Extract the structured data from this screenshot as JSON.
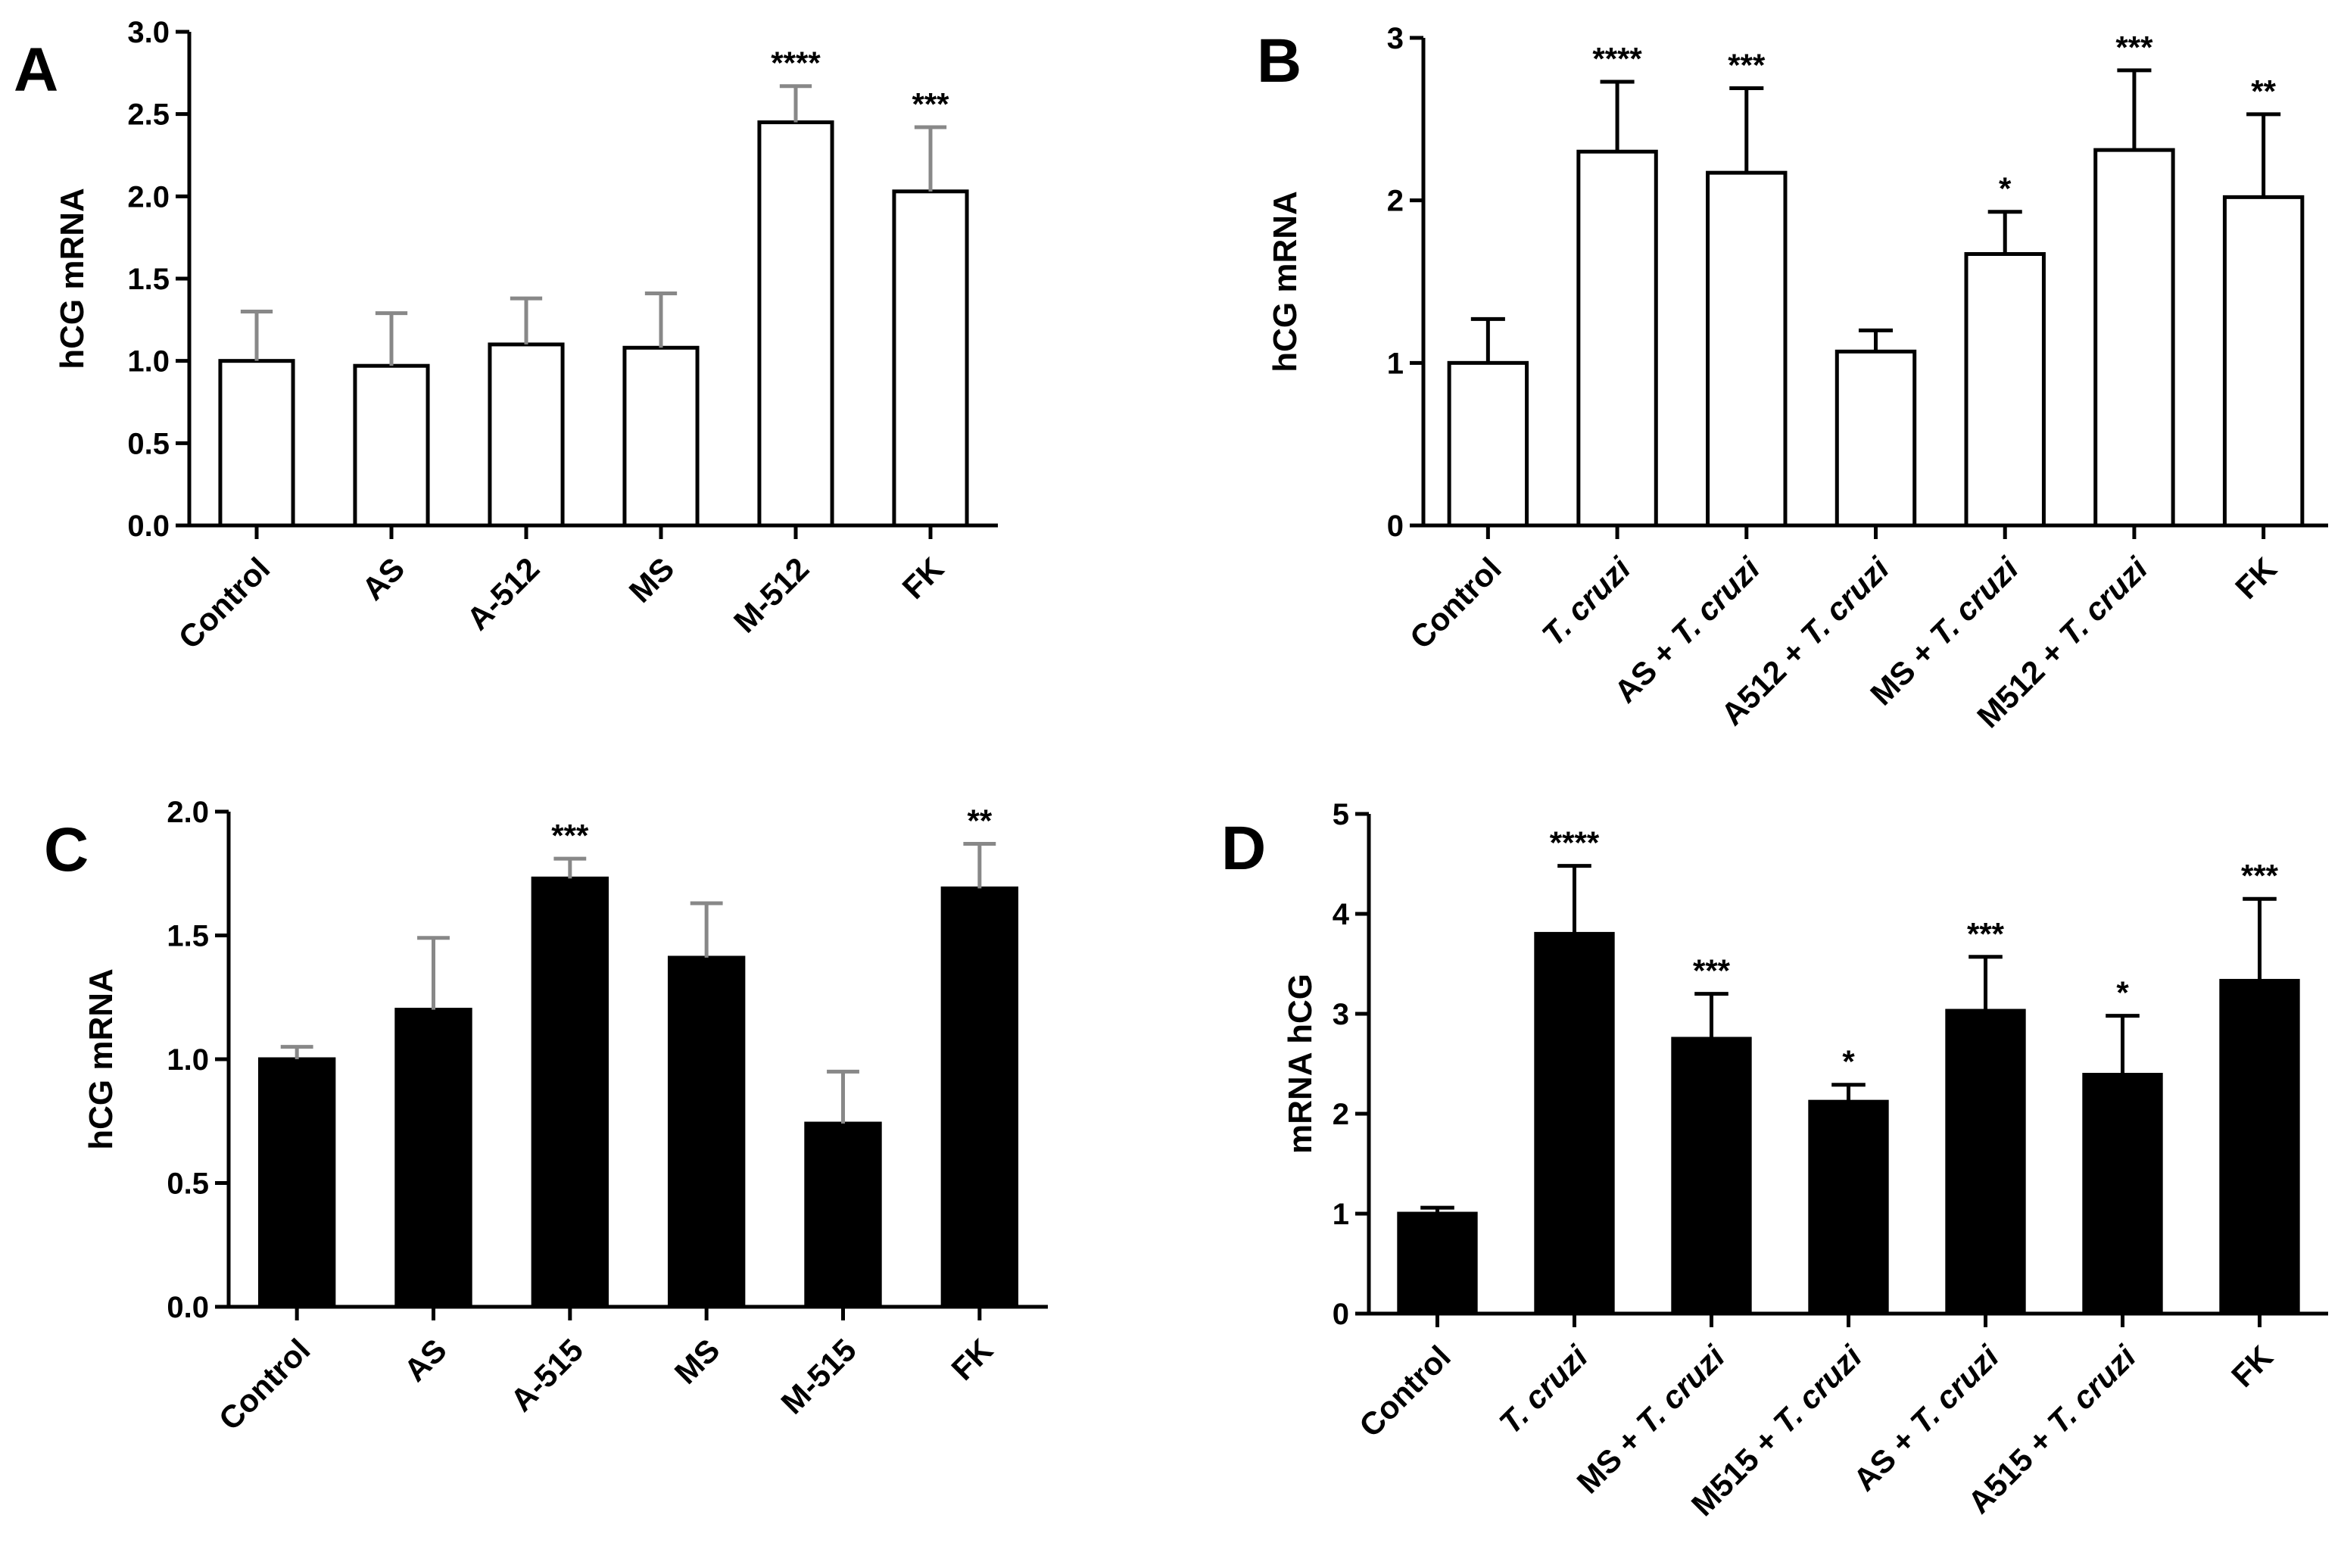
{
  "chart_data": [
    {
      "panel": "A",
      "type": "bar",
      "bar_fill": "#ffffff",
      "error_color": "#888888",
      "ylabel": "hCG mRNA",
      "ylim": [
        0,
        3.0
      ],
      "yticks": [
        "0.0",
        "0.5",
        "1.0",
        "1.5",
        "2.0",
        "2.5",
        "3.0"
      ],
      "categories": [
        {
          "parts": [
            {
              "text": "Control",
              "italic": false
            }
          ]
        },
        {
          "parts": [
            {
              "text": "AS",
              "italic": false
            }
          ]
        },
        {
          "parts": [
            {
              "text": "A-512",
              "italic": false
            }
          ]
        },
        {
          "parts": [
            {
              "text": "MS",
              "italic": false
            }
          ]
        },
        {
          "parts": [
            {
              "text": "M-512",
              "italic": false
            }
          ]
        },
        {
          "parts": [
            {
              "text": "FK",
              "italic": false
            }
          ]
        }
      ],
      "values": [
        1.0,
        0.97,
        1.1,
        1.08,
        2.45,
        2.03
      ],
      "errors": [
        0.3,
        0.32,
        0.28,
        0.33,
        0.22,
        0.39
      ],
      "significance": [
        "",
        "",
        "",
        "",
        "****",
        "***"
      ]
    },
    {
      "panel": "B",
      "type": "bar",
      "bar_fill": "#ffffff",
      "error_color": "#000000",
      "ylabel": "hCG mRNA",
      "ylim": [
        0,
        3
      ],
      "yticks": [
        "0",
        "1",
        "2",
        "3"
      ],
      "categories": [
        {
          "parts": [
            {
              "text": "Control",
              "italic": false
            }
          ]
        },
        {
          "parts": [
            {
              "text": "T. cruzi",
              "italic": true
            }
          ]
        },
        {
          "parts": [
            {
              "text": "AS + ",
              "italic": false
            },
            {
              "text": "T. cruzi",
              "italic": true
            }
          ]
        },
        {
          "parts": [
            {
              "text": "A512 + ",
              "italic": false
            },
            {
              "text": "T. cruzi",
              "italic": true
            }
          ]
        },
        {
          "parts": [
            {
              "text": "MS + ",
              "italic": false
            },
            {
              "text": "T. cruzi",
              "italic": true
            }
          ]
        },
        {
          "parts": [
            {
              "text": "M512 + ",
              "italic": false
            },
            {
              "text": "T. cruzi",
              "italic": true
            }
          ]
        },
        {
          "parts": [
            {
              "text": "FK",
              "italic": false
            }
          ]
        }
      ],
      "values": [
        1.0,
        2.3,
        2.17,
        1.07,
        1.67,
        2.31,
        2.02
      ],
      "errors": [
        0.27,
        0.43,
        0.52,
        0.13,
        0.26,
        0.49,
        0.51
      ],
      "significance": [
        "",
        "****",
        "***",
        "",
        "*",
        "***",
        "**"
      ]
    },
    {
      "panel": "C",
      "type": "bar",
      "bar_fill": "#000000",
      "error_color": "#888888",
      "ylabel": "hCG mRNA",
      "ylim": [
        0,
        2.0
      ],
      "yticks": [
        "0.0",
        "0.5",
        "1.0",
        "1.5",
        "2.0"
      ],
      "categories": [
        {
          "parts": [
            {
              "text": "Control",
              "italic": false
            }
          ]
        },
        {
          "parts": [
            {
              "text": "AS",
              "italic": false
            }
          ]
        },
        {
          "parts": [
            {
              "text": "A-515",
              "italic": false
            }
          ]
        },
        {
          "parts": [
            {
              "text": "MS",
              "italic": false
            }
          ]
        },
        {
          "parts": [
            {
              "text": "M-515",
              "italic": false
            }
          ]
        },
        {
          "parts": [
            {
              "text": "FK",
              "italic": false
            }
          ]
        }
      ],
      "values": [
        1.0,
        1.2,
        1.73,
        1.41,
        0.74,
        1.69
      ],
      "errors": [
        0.05,
        0.29,
        0.08,
        0.22,
        0.21,
        0.18
      ],
      "significance": [
        "",
        "",
        "***",
        "",
        "",
        "**"
      ]
    },
    {
      "panel": "D",
      "type": "bar",
      "bar_fill": "#000000",
      "error_color": "#000000",
      "ylabel": "mRNA hCG",
      "ylim": [
        0,
        5
      ],
      "yticks": [
        "0",
        "1",
        "2",
        "3",
        "4",
        "5"
      ],
      "categories": [
        {
          "parts": [
            {
              "text": "Control",
              "italic": false
            }
          ]
        },
        {
          "parts": [
            {
              "text": "T. cruzi",
              "italic": true
            }
          ]
        },
        {
          "parts": [
            {
              "text": "MS + ",
              "italic": false
            },
            {
              "text": "T. cruzi",
              "italic": true
            }
          ]
        },
        {
          "parts": [
            {
              "text": "M515 + ",
              "italic": false
            },
            {
              "text": "T. cruzi",
              "italic": true
            }
          ]
        },
        {
          "parts": [
            {
              "text": "AS + ",
              "italic": false
            },
            {
              "text": "T. cruzi",
              "italic": true
            }
          ]
        },
        {
          "parts": [
            {
              "text": "A515 + ",
              "italic": false
            },
            {
              "text": "T. cruzi",
              "italic": true
            }
          ]
        },
        {
          "parts": [
            {
              "text": "FK",
              "italic": false
            }
          ]
        }
      ],
      "values": [
        1.0,
        3.8,
        2.75,
        2.12,
        3.03,
        2.39,
        3.33
      ],
      "errors": [
        0.06,
        0.68,
        0.45,
        0.17,
        0.54,
        0.59,
        0.82
      ],
      "significance": [
        "",
        "****",
        "***",
        "*",
        "***",
        "*",
        "***"
      ]
    }
  ]
}
